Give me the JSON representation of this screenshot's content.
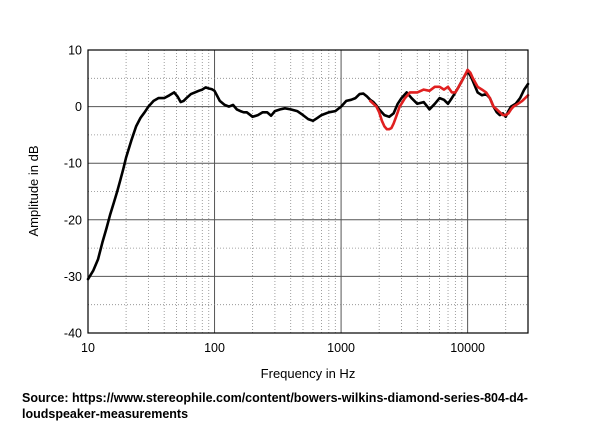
{
  "chart_data": {
    "type": "line",
    "xscale": "log",
    "xlim": [
      10,
      30000
    ],
    "ylim": [
      -40,
      10
    ],
    "xlabel": "Frequency in Hz",
    "ylabel": "Amplitude in dB",
    "grid": true,
    "xtick_labels": [
      "10",
      "100",
      "1000",
      "10000"
    ],
    "ytick_labels": [
      "10",
      "0",
      "-10",
      "-20",
      "-30",
      "-40"
    ],
    "series": [
      {
        "color": "#000000",
        "points": [
          [
            10,
            -30.5
          ],
          [
            11,
            -29
          ],
          [
            12,
            -27
          ],
          [
            13,
            -24
          ],
          [
            14,
            -21.5
          ],
          [
            15,
            -19
          ],
          [
            16,
            -17
          ],
          [
            17,
            -15
          ],
          [
            18,
            -13
          ],
          [
            19,
            -11
          ],
          [
            20,
            -9
          ],
          [
            22,
            -6
          ],
          [
            24,
            -3.5
          ],
          [
            26,
            -2
          ],
          [
            28,
            -1
          ],
          [
            30,
            0
          ],
          [
            33,
            1
          ],
          [
            36,
            1.5
          ],
          [
            40,
            1.5
          ],
          [
            44,
            2
          ],
          [
            48,
            2.5
          ],
          [
            51,
            1.8
          ],
          [
            54,
            0.8
          ],
          [
            57,
            1
          ],
          [
            60,
            1.5
          ],
          [
            65,
            2.2
          ],
          [
            70,
            2.5
          ],
          [
            75,
            2.8
          ],
          [
            80,
            3
          ],
          [
            85,
            3.4
          ],
          [
            90,
            3.2
          ],
          [
            95,
            3.1
          ],
          [
            100,
            2.8
          ],
          [
            110,
            1
          ],
          [
            120,
            0.3
          ],
          [
            130,
            0
          ],
          [
            140,
            0.3
          ],
          [
            150,
            -0.5
          ],
          [
            160,
            -0.8
          ],
          [
            170,
            -1
          ],
          [
            180,
            -1
          ],
          [
            200,
            -1.8
          ],
          [
            220,
            -1.5
          ],
          [
            240,
            -1
          ],
          [
            260,
            -1
          ],
          [
            280,
            -1.6
          ],
          [
            300,
            -0.8
          ],
          [
            330,
            -0.5
          ],
          [
            360,
            -0.3
          ],
          [
            400,
            -0.5
          ],
          [
            450,
            -0.8
          ],
          [
            500,
            -1.5
          ],
          [
            550,
            -2.2
          ],
          [
            600,
            -2.5
          ],
          [
            650,
            -2
          ],
          [
            700,
            -1.5
          ],
          [
            800,
            -1
          ],
          [
            900,
            -0.8
          ],
          [
            1000,
            0
          ],
          [
            1100,
            1
          ],
          [
            1200,
            1.2
          ],
          [
            1300,
            1.5
          ],
          [
            1400,
            2.2
          ],
          [
            1500,
            2.3
          ],
          [
            1600,
            1.8
          ],
          [
            1700,
            1.2
          ],
          [
            1800,
            0.8
          ],
          [
            1900,
            0.2
          ],
          [
            2000,
            -0.5
          ],
          [
            2200,
            -1.5
          ],
          [
            2400,
            -1.8
          ],
          [
            2600,
            -1.2
          ],
          [
            2800,
            0.5
          ],
          [
            3000,
            1.5
          ],
          [
            3300,
            2.5
          ],
          [
            3600,
            1.5
          ],
          [
            4000,
            0.5
          ],
          [
            4500,
            0.8
          ],
          [
            4800,
            0
          ],
          [
            5000,
            -0.5
          ],
          [
            5500,
            0.5
          ],
          [
            6000,
            1.5
          ],
          [
            6500,
            1.2
          ],
          [
            7000,
            0.5
          ],
          [
            7500,
            1.5
          ],
          [
            8000,
            2.5
          ],
          [
            8500,
            3.5
          ],
          [
            9000,
            4.5
          ],
          [
            9500,
            5.5
          ],
          [
            10000,
            6.2
          ],
          [
            10500,
            5.5
          ],
          [
            11000,
            4.5
          ],
          [
            12000,
            2.5
          ],
          [
            13000,
            2
          ],
          [
            14000,
            2.2
          ],
          [
            15000,
            1.5
          ],
          [
            16000,
            0
          ],
          [
            17000,
            -1
          ],
          [
            18000,
            -1.5
          ],
          [
            19000,
            -1.2
          ],
          [
            20000,
            -1.8
          ],
          [
            21000,
            -0.8
          ],
          [
            22000,
            0
          ],
          [
            24000,
            0.5
          ],
          [
            26000,
            1.5
          ],
          [
            28000,
            3
          ],
          [
            30000,
            4
          ]
        ]
      },
      {
        "color": "#e02020",
        "points": [
          [
            1700,
            1
          ],
          [
            1800,
            0.5
          ],
          [
            1900,
            0
          ],
          [
            2000,
            -1
          ],
          [
            2100,
            -2.5
          ],
          [
            2200,
            -3.5
          ],
          [
            2300,
            -4
          ],
          [
            2400,
            -4
          ],
          [
            2500,
            -3.8
          ],
          [
            2600,
            -3
          ],
          [
            2700,
            -2
          ],
          [
            2800,
            -1
          ],
          [
            2900,
            0
          ],
          [
            3000,
            0.5
          ],
          [
            3200,
            1.5
          ],
          [
            3500,
            2.5
          ],
          [
            4000,
            2.5
          ],
          [
            4500,
            3
          ],
          [
            5000,
            2.8
          ],
          [
            5500,
            3.5
          ],
          [
            6000,
            3.5
          ],
          [
            6500,
            3
          ],
          [
            7000,
            3.5
          ],
          [
            7500,
            2.5
          ],
          [
            8000,
            2.5
          ],
          [
            8500,
            3.5
          ],
          [
            9000,
            4.5
          ],
          [
            9500,
            5.5
          ],
          [
            10000,
            6.5
          ],
          [
            10500,
            6
          ],
          [
            11000,
            5
          ],
          [
            12000,
            3.5
          ],
          [
            13000,
            3
          ],
          [
            14000,
            2.5
          ],
          [
            15000,
            1.5
          ],
          [
            16000,
            0
          ],
          [
            17000,
            -0.5
          ],
          [
            18000,
            -1
          ],
          [
            19000,
            -1.5
          ],
          [
            20000,
            -1.5
          ],
          [
            21000,
            -1.2
          ],
          [
            22000,
            -0.5
          ],
          [
            23000,
            0
          ],
          [
            25000,
            0.5
          ],
          [
            27000,
            1
          ],
          [
            30000,
            2
          ]
        ]
      }
    ]
  },
  "source": "Source: https://www.stereophile.com/content/bowers-wilkins-diamond-series-804-d4-loudspeaker-measurements"
}
